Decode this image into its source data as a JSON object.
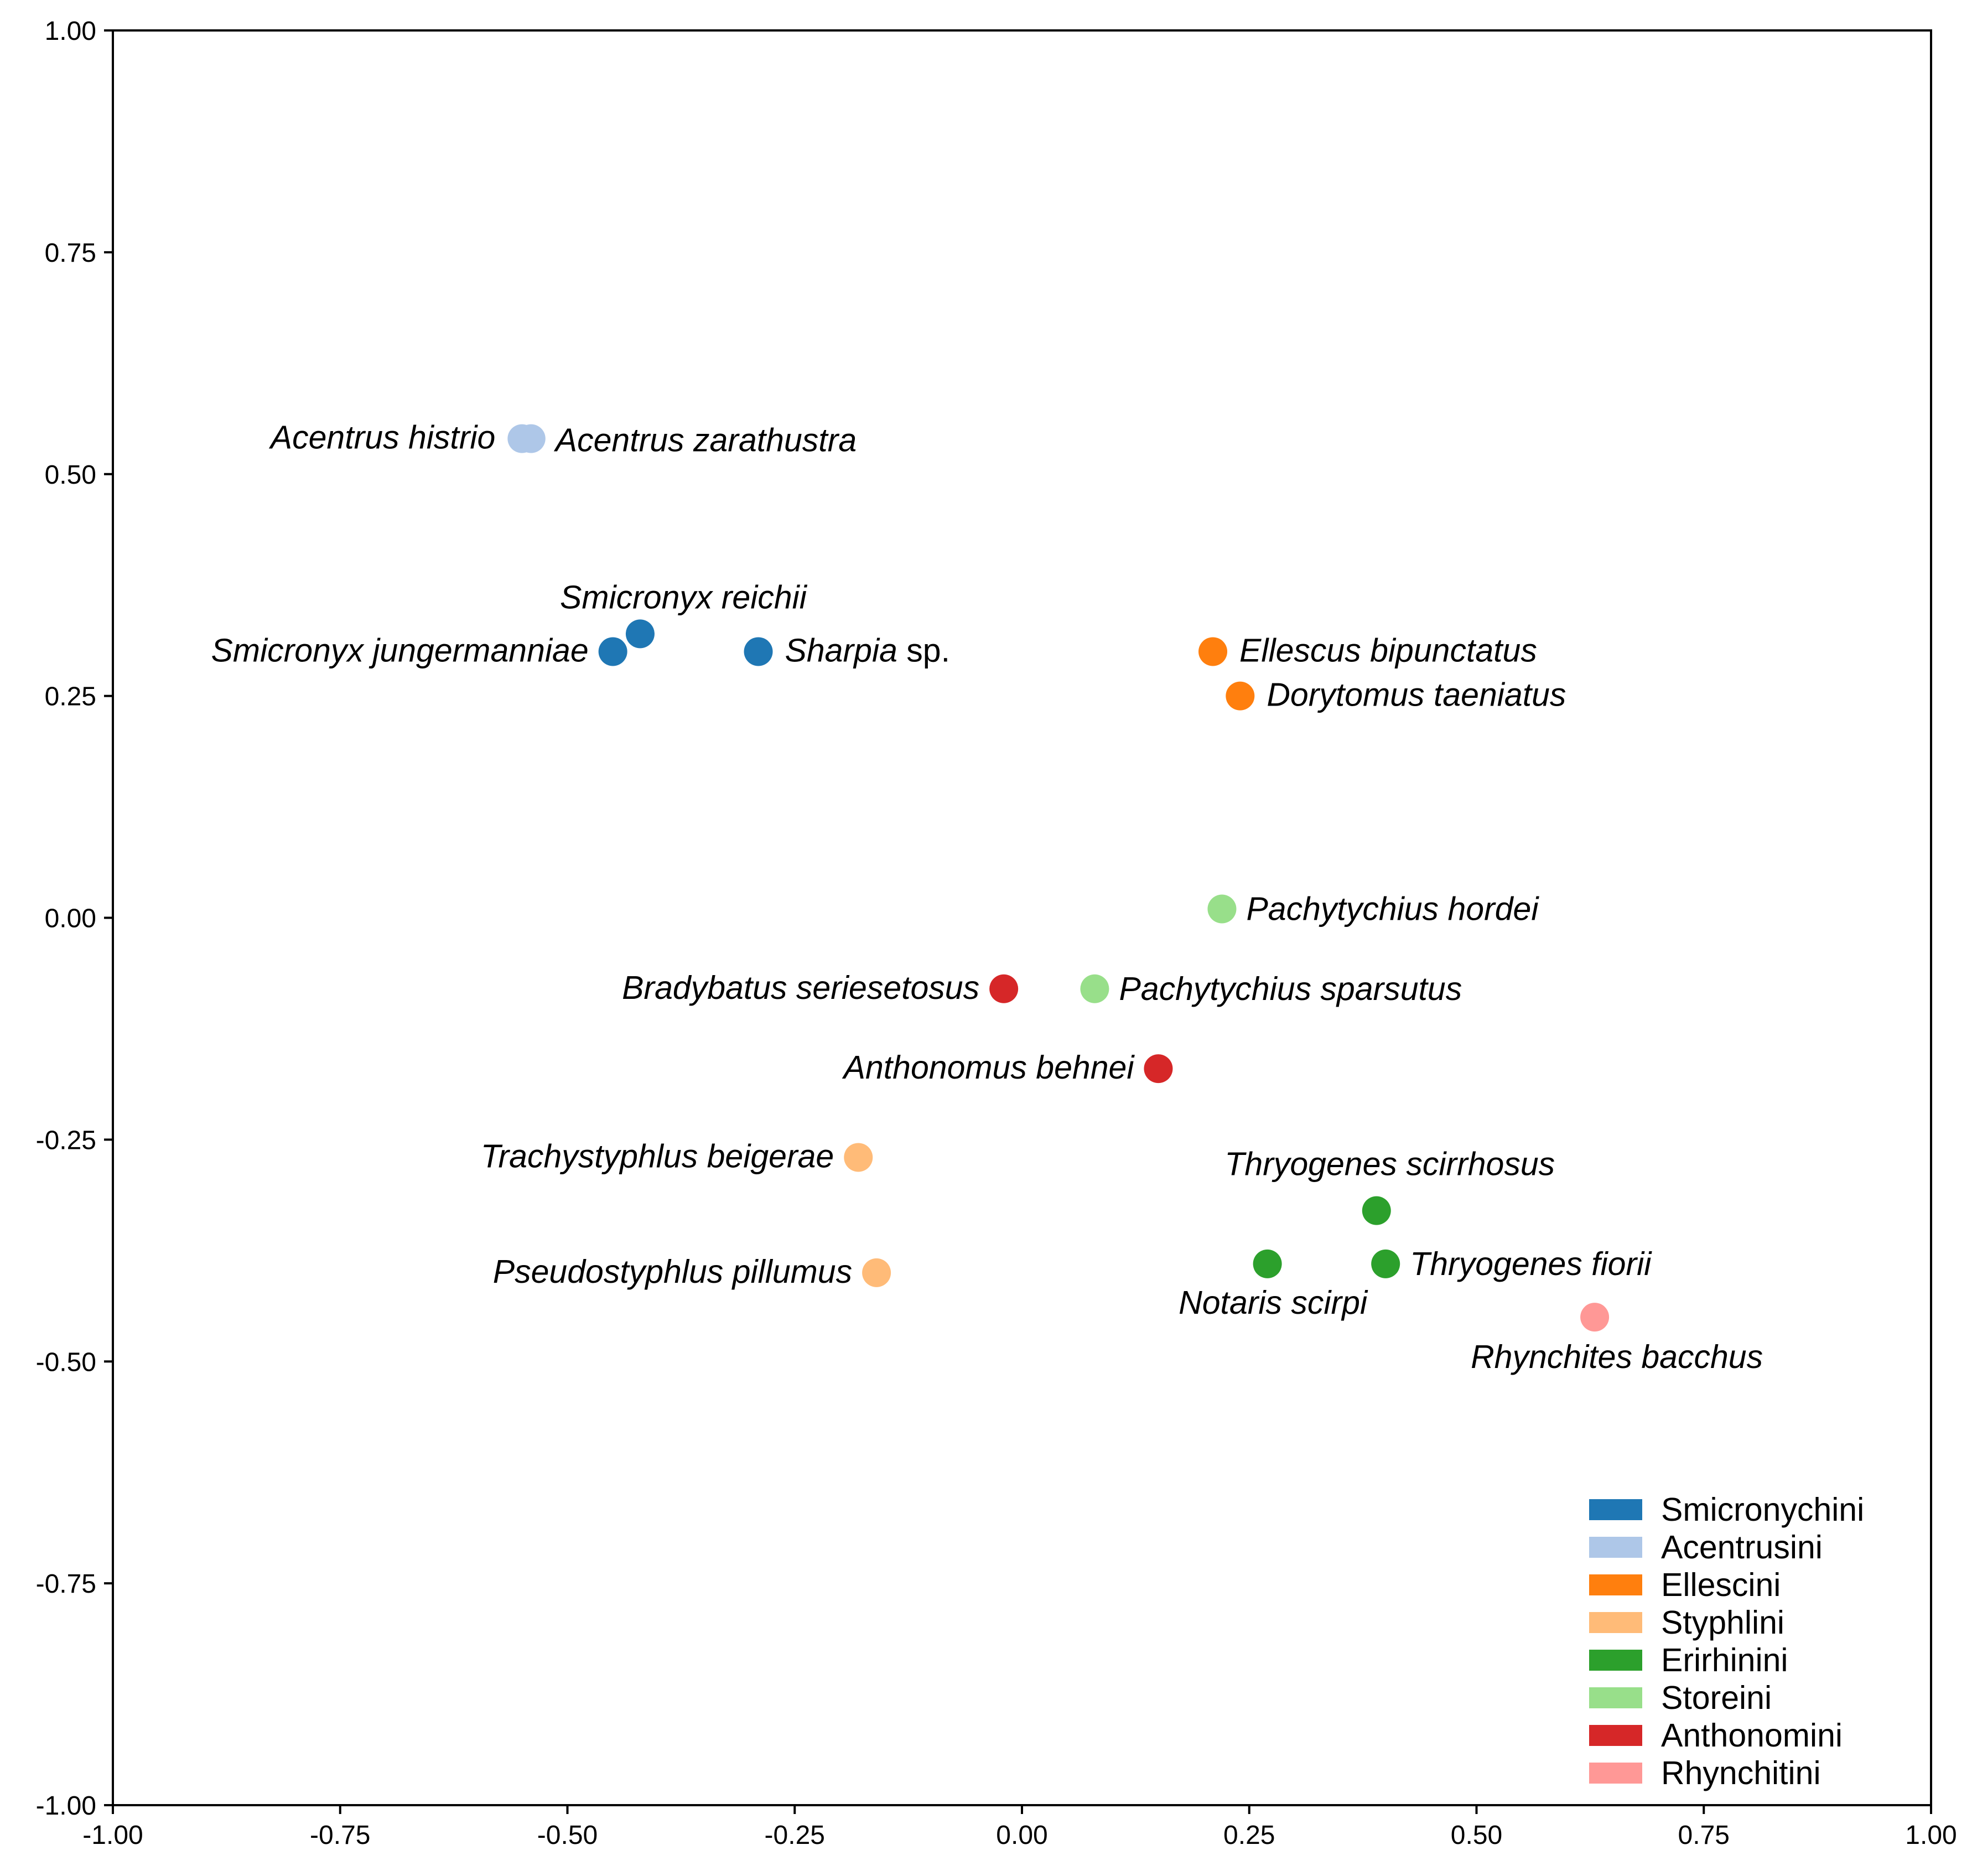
{
  "chart_data": {
    "type": "scatter",
    "title": "",
    "xlabel": "",
    "ylabel": "",
    "xlim": [
      -1.0,
      1.0
    ],
    "ylim": [
      -1.0,
      1.0
    ],
    "grid": false,
    "legend_position": "bottom-right",
    "x_ticks": [
      "-1.00",
      "-0.75",
      "-0.50",
      "-0.25",
      "0.00",
      "0.25",
      "0.50",
      "0.75",
      "1.00"
    ],
    "y_ticks": [
      "1.00",
      "0.75",
      "0.50",
      "0.25",
      "0.00",
      "-0.25",
      "-0.50",
      "-0.75",
      "-1.00"
    ],
    "groups": [
      {
        "name": "Smicronychini",
        "color": "#1f77b4"
      },
      {
        "name": "Acentrusini",
        "color": "#aec7e8"
      },
      {
        "name": "Ellescini",
        "color": "#ff7f0e"
      },
      {
        "name": "Styphlini",
        "color": "#ffbb78"
      },
      {
        "name": "Erirhinini",
        "color": "#2ca02c"
      },
      {
        "name": "Storeini",
        "color": "#98df8a"
      },
      {
        "name": "Anthonomini",
        "color": "#d62728"
      },
      {
        "name": "Rhynchitini",
        "color": "#ff9896"
      }
    ],
    "points": [
      {
        "label": "Acentrus histrio",
        "group": "Acentrusini",
        "x": -0.55,
        "y": 0.54
      },
      {
        "label": "Acentrus zarathustra",
        "group": "Acentrusini",
        "x": -0.54,
        "y": 0.54
      },
      {
        "label": "Smicronyx reichii",
        "group": "Smicronychini",
        "x": -0.42,
        "y": 0.32
      },
      {
        "label": "Smicronyx jungermanniae",
        "group": "Smicronychini",
        "x": -0.45,
        "y": 0.3
      },
      {
        "label": "Sharpia",
        "label_suffix": " sp.",
        "group": "Smicronychini",
        "x": -0.29,
        "y": 0.3
      },
      {
        "label": "Ellescus bipunctatus",
        "group": "Ellescini",
        "x": 0.21,
        "y": 0.3
      },
      {
        "label": "Dorytomus taeniatus",
        "group": "Ellescini",
        "x": 0.24,
        "y": 0.25
      },
      {
        "label": "Pachytychius hordei",
        "group": "Storeini",
        "x": 0.22,
        "y": 0.01
      },
      {
        "label": "Pachytychius sparsutus",
        "group": "Storeini",
        "x": 0.08,
        "y": -0.08
      },
      {
        "label": "Bradybatus seriesetosus",
        "group": "Anthonomini",
        "x": -0.02,
        "y": -0.08
      },
      {
        "label": "Anthonomus behnei",
        "group": "Anthonomini",
        "x": 0.15,
        "y": -0.17
      },
      {
        "label": "Trachystyphlus beigerae",
        "group": "Styphlini",
        "x": -0.18,
        "y": -0.27
      },
      {
        "label": "Pseudostyphlus pillumus",
        "group": "Styphlini",
        "x": -0.16,
        "y": -0.4
      },
      {
        "label": "Thryogenes scirrhosus",
        "group": "Erirhinini",
        "x": 0.39,
        "y": -0.33
      },
      {
        "label": "Thryogenes fiorii",
        "group": "Erirhinini",
        "x": 0.4,
        "y": -0.39
      },
      {
        "label": "Notaris scirpi",
        "group": "Erirhinini",
        "x": 0.27,
        "y": -0.39
      },
      {
        "label": "Rhynchites bacchus",
        "group": "Rhynchitini",
        "x": 0.63,
        "y": -0.45
      }
    ]
  }
}
